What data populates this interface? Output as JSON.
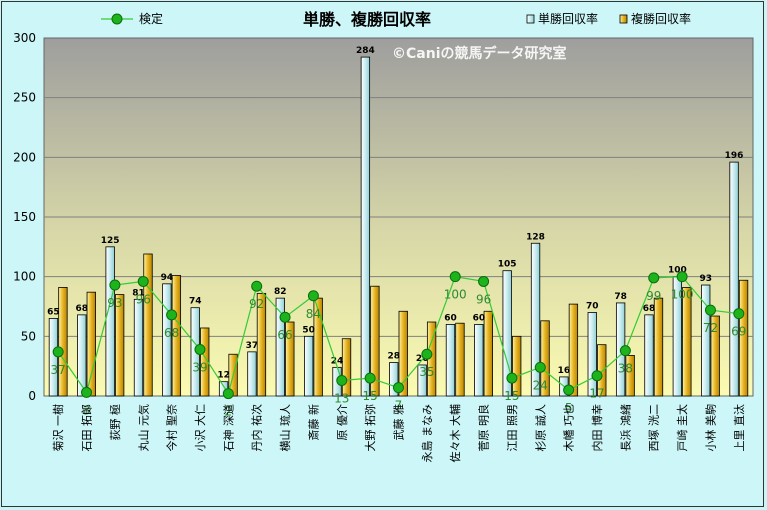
{
  "chart_data": {
    "type": "bar",
    "title": "単勝、複勝回収率",
    "watermark": "©Caniの競馬データ研究室",
    "ylim": [
      0,
      300
    ],
    "yticks": [
      0,
      50,
      100,
      150,
      200,
      250,
      300
    ],
    "grid": true,
    "legend_placement": "top",
    "categories": [
      "菊沢 一樹",
      "石田 拓郎",
      "荻野 極",
      "丸山 元気",
      "今村 聖奈",
      "小沢 大仁",
      "石神 深道",
      "丹内 祐次",
      "横山 琉人",
      "斎藤 新",
      "原 優介",
      "大野 拓弥",
      "武藤 雅",
      "永島 まなみ",
      "佐々木 大輔",
      "菅原 明良",
      "江田 照男",
      "杉原 誠人",
      "木幡 巧也",
      "内田 博幸",
      "長浜 鴻緒",
      "西塚 洸二",
      "戸崎 圭太",
      "小林 美駒",
      "上里 直汰"
    ],
    "series": [
      {
        "name": "単勝回収率",
        "type": "bar",
        "color": "#c9ecf0",
        "values": [
          65,
          68,
          125,
          81,
          94,
          74,
          12,
          37,
          82,
          50,
          24,
          284,
          28,
          26,
          60,
          60,
          105,
          128,
          16,
          70,
          78,
          68,
          100,
          93,
          196
        ]
      },
      {
        "name": "複勝回収率",
        "type": "bar",
        "color": "#e6b323",
        "values": [
          91,
          87,
          85,
          119,
          101,
          57,
          35,
          86,
          62,
          82,
          48,
          92,
          71,
          62,
          61,
          71,
          50,
          63,
          77,
          43,
          34,
          82,
          91,
          67,
          97
        ]
      },
      {
        "name": "検定",
        "type": "line",
        "color": "#33cc33",
        "values": [
          37,
          3,
          93,
          96,
          68,
          39,
          2,
          92,
          66,
          84,
          13,
          15,
          7,
          35,
          100,
          96,
          15,
          24,
          5,
          17,
          38,
          99,
          100,
          72,
          69
        ]
      }
    ]
  }
}
